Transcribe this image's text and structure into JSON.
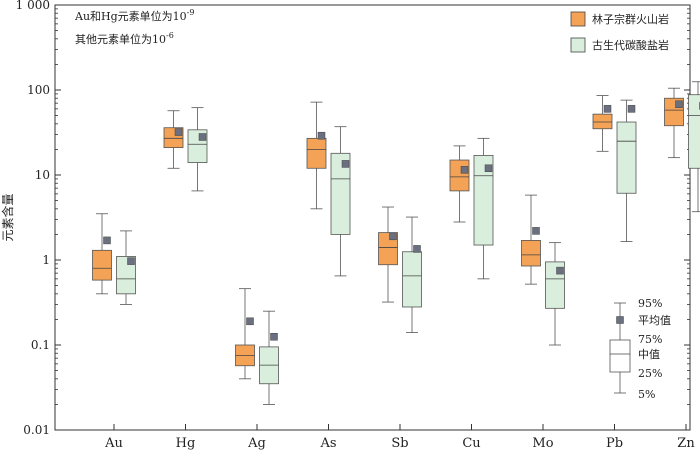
{
  "chart_data": {
    "type": "box",
    "ylabel": "元素含量",
    "yscale": "log",
    "ylim": [
      0.01,
      1000
    ],
    "yticks": [
      {
        "value": 0.01,
        "label": "0.01"
      },
      {
        "value": 0.1,
        "label": "0.1"
      },
      {
        "value": 1,
        "label": "1"
      },
      {
        "value": 10,
        "label": "10"
      },
      {
        "value": 100,
        "label": "100"
      },
      {
        "value": 1000,
        "label": "1 000"
      }
    ],
    "notes": [
      {
        "text": "Au和Hg元素单位为10",
        "sup": "-9"
      },
      {
        "text": "其他元素单位为10",
        "sup": "-6"
      }
    ],
    "categories": [
      "Au",
      "Hg",
      "Ag",
      "As",
      "Sb",
      "Cu",
      "Mo",
      "Pb",
      "Zn"
    ],
    "series": [
      {
        "name": "林子宗群火山岩",
        "color": "#f4a255",
        "boxes": [
          {
            "p5": 0.4,
            "q1": 0.58,
            "median": 0.8,
            "q3": 1.3,
            "p95": 3.5,
            "mean": 1.7
          },
          {
            "p5": 12,
            "q1": 21,
            "median": 27,
            "q3": 36,
            "p95": 57,
            "mean": 32
          },
          {
            "p5": 0.04,
            "q1": 0.057,
            "median": 0.075,
            "q3": 0.1,
            "p95": 0.46,
            "mean": 0.19
          },
          {
            "p5": 4,
            "q1": 12,
            "median": 20,
            "q3": 27,
            "p95": 72,
            "mean": 29
          },
          {
            "p5": 0.32,
            "q1": 0.88,
            "median": 1.4,
            "q3": 2.1,
            "p95": 4.2,
            "mean": 1.9
          },
          {
            "p5": 2.8,
            "q1": 6.5,
            "median": 9.5,
            "q3": 15,
            "p95": 22,
            "mean": 11.5
          },
          {
            "p5": 0.52,
            "q1": 0.85,
            "median": 1.15,
            "q3": 1.7,
            "p95": 5.8,
            "mean": 2.2
          },
          {
            "p5": 19,
            "q1": 35,
            "median": 42,
            "q3": 52,
            "p95": 86,
            "mean": 60
          },
          {
            "p5": 16,
            "q1": 38,
            "median": 58,
            "q3": 80,
            "p95": 105,
            "mean": 68
          }
        ]
      },
      {
        "name": "古生代碳酸盐岩",
        "color": "#d9eedd",
        "boxes": [
          {
            "p5": 0.3,
            "q1": 0.4,
            "median": 0.6,
            "q3": 1.1,
            "p95": 2.2,
            "mean": 0.97
          },
          {
            "p5": 6.5,
            "q1": 14,
            "median": 23,
            "q3": 34,
            "p95": 62,
            "mean": 28
          },
          {
            "p5": 0.02,
            "q1": 0.035,
            "median": 0.058,
            "q3": 0.095,
            "p95": 0.25,
            "mean": 0.125
          },
          {
            "p5": 0.65,
            "q1": 2,
            "median": 9,
            "q3": 18,
            "p95": 37,
            "mean": 13.5
          },
          {
            "p5": 0.14,
            "q1": 0.28,
            "median": 0.65,
            "q3": 1.25,
            "p95": 3.2,
            "mean": 1.35
          },
          {
            "p5": 0.6,
            "q1": 1.5,
            "median": 9.8,
            "q3": 17,
            "p95": 27,
            "mean": 12
          },
          {
            "p5": 0.1,
            "q1": 0.27,
            "median": 0.6,
            "q3": 0.95,
            "p95": 1.6,
            "mean": 0.75
          },
          {
            "p5": 1.65,
            "q1": 6.1,
            "median": 25,
            "q3": 42,
            "p95": 76,
            "mean": 60
          },
          {
            "p5": 3.7,
            "q1": 12,
            "median": 50,
            "q3": 88,
            "p95": 125,
            "mean": 65
          }
        ]
      }
    ],
    "key": {
      "labels": {
        "p95": "95%",
        "mean": "平均值",
        "q3": "75%",
        "median": "中值",
        "q1": "25%",
        "p5": "5%"
      }
    },
    "mean_marker_color": "#6b7080",
    "grid": false,
    "legend_position": "top-right"
  }
}
